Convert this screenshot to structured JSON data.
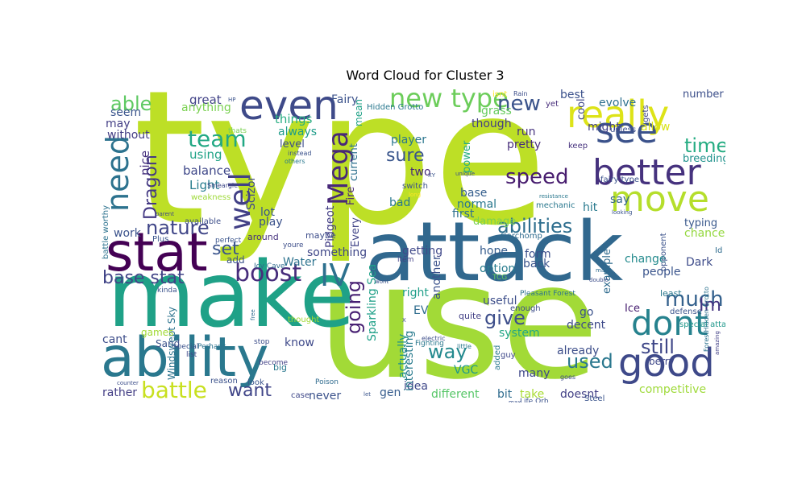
{
  "figure": {
    "title": "Word Cloud for Cluster 3"
  },
  "cloud": {
    "words": [
      {
        "text": "type",
        "color": "#bddf26"
      },
      {
        "text": "use",
        "color": "#a2da37"
      },
      {
        "text": "make",
        "color": "#1fa187"
      },
      {
        "text": "attack",
        "color": "#31688e"
      },
      {
        "text": "ability",
        "color": "#2a788e"
      },
      {
        "text": "stat",
        "color": "#440154"
      },
      {
        "text": "even",
        "color": "#3e4a89"
      },
      {
        "text": "really",
        "color": "#dde318"
      },
      {
        "text": "better",
        "color": "#46327e"
      },
      {
        "text": "see",
        "color": "#3b528b"
      },
      {
        "text": "move",
        "color": "#b5de2b"
      },
      {
        "text": "good",
        "color": "#3e4989"
      },
      {
        "text": "dont",
        "color": "#26828e"
      },
      {
        "text": "need",
        "color": "#2c728e"
      },
      {
        "text": "well",
        "color": "#424086"
      },
      {
        "text": "Mega",
        "color": "#482878"
      },
      {
        "text": "IV",
        "color": "#2d708e"
      },
      {
        "text": "boost",
        "color": "#472d7b"
      },
      {
        "text": "new type",
        "color": "#6ccd5a"
      },
      {
        "text": "team",
        "color": "#22a884"
      },
      {
        "text": "battle",
        "color": "#c8e020"
      },
      {
        "text": "abilities",
        "color": "#2e6e8e"
      },
      {
        "text": "speed",
        "color": "#481d6f"
      },
      {
        "text": "base stat",
        "color": "#414487"
      },
      {
        "text": "nature",
        "color": "#404688"
      },
      {
        "text": "set",
        "color": "#3a548c"
      },
      {
        "text": "way",
        "color": "#23898e"
      },
      {
        "text": "going",
        "color": "#482173"
      },
      {
        "text": "much",
        "color": "#34618d"
      },
      {
        "text": "still",
        "color": "#3f4788"
      },
      {
        "text": "used",
        "color": "#2a778e"
      },
      {
        "text": "Im",
        "color": "#453581"
      },
      {
        "text": "give",
        "color": "#3d4e8a"
      },
      {
        "text": "able",
        "color": "#5ec962"
      },
      {
        "text": "new",
        "color": "#3a538b"
      },
      {
        "text": "time",
        "color": "#25ac82"
      },
      {
        "text": "Dragon",
        "color": "#443983"
      },
      {
        "text": "want",
        "color": "#404588"
      },
      {
        "text": "sure",
        "color": "#39558c"
      },
      {
        "text": "Light",
        "color": "#287d8e"
      },
      {
        "text": "balance",
        "color": "#3f4889"
      },
      {
        "text": "things",
        "color": "#27ad81"
      },
      {
        "text": "using",
        "color": "#20a386"
      },
      {
        "text": "great",
        "color": "#414287"
      },
      {
        "text": "nice",
        "color": "#46307e"
      },
      {
        "text": "level",
        "color": "#3d4d8a"
      },
      {
        "text": "always",
        "color": "#1e9c89"
      },
      {
        "text": "player",
        "color": "#2a768e"
      },
      {
        "text": "pretty",
        "color": "#472d7b"
      },
      {
        "text": "run",
        "color": "#46337f"
      },
      {
        "text": "though",
        "color": "#433e85"
      },
      {
        "text": "might",
        "color": "#424186"
      },
      {
        "text": "evolve",
        "color": "#2d708e"
      },
      {
        "text": "best",
        "color": "#3b518b"
      },
      {
        "text": "number",
        "color": "#3c4f8a"
      },
      {
        "text": "allow",
        "color": "#dae319"
      },
      {
        "text": "breeding",
        "color": "#20928c"
      },
      {
        "text": "say",
        "color": "#33638d"
      },
      {
        "text": "hit",
        "color": "#297a8e"
      },
      {
        "text": "typing",
        "color": "#38588c"
      },
      {
        "text": "chance",
        "color": "#95d840"
      },
      {
        "text": "Dark",
        "color": "#3e4c8a"
      },
      {
        "text": "change",
        "color": "#238a8d"
      },
      {
        "text": "people",
        "color": "#3a548c"
      },
      {
        "text": "example",
        "color": "#2f6b8e"
      },
      {
        "text": "competitive",
        "color": "#9fda3a"
      },
      {
        "text": "decent",
        "color": "#3e4a89"
      },
      {
        "text": "already",
        "color": "#3d4e8a"
      },
      {
        "text": "many",
        "color": "#3f4889"
      },
      {
        "text": "take",
        "color": "#a8db34"
      },
      {
        "text": "doesnt",
        "color": "#424086"
      },
      {
        "text": "bit",
        "color": "#2f6c8e"
      },
      {
        "text": "different",
        "color": "#56c667"
      },
      {
        "text": "gen",
        "color": "#365c8d"
      },
      {
        "text": "idea",
        "color": "#3f4889"
      },
      {
        "text": "never",
        "color": "#3b528b"
      },
      {
        "text": "rather",
        "color": "#433e85"
      },
      {
        "text": "cant",
        "color": "#3d4d8a"
      },
      {
        "text": "work",
        "color": "#3b528b"
      },
      {
        "text": "may",
        "color": "#433e85"
      },
      {
        "text": "seem",
        "color": "#3a548c"
      },
      {
        "text": "without",
        "color": "#433d84"
      },
      {
        "text": "anything",
        "color": "#7ad151"
      },
      {
        "text": "know",
        "color": "#3e4989"
      },
      {
        "text": "something",
        "color": "#3f4788"
      },
      {
        "text": "Water",
        "color": "#2c728e"
      },
      {
        "text": "lot",
        "color": "#39568c"
      },
      {
        "text": "play",
        "color": "#3b528b"
      },
      {
        "text": "getting",
        "color": "#3f4889"
      },
      {
        "text": "hope",
        "color": "#365d8d"
      },
      {
        "text": "form",
        "color": "#3c508b"
      },
      {
        "text": "back",
        "color": "#3a548c"
      },
      {
        "text": "option",
        "color": "#287c8e"
      },
      {
        "text": "useful",
        "color": "#3d4e8a"
      },
      {
        "text": "right",
        "color": "#1f9e89"
      },
      {
        "text": "EV",
        "color": "#2f6c8e"
      },
      {
        "text": "actually",
        "color": "#21918c"
      },
      {
        "text": "interesting",
        "color": "#297b8e"
      },
      {
        "text": "VGC",
        "color": "#1f988b"
      },
      {
        "text": "system",
        "color": "#22a785"
      },
      {
        "text": "go",
        "color": "#3b528b"
      },
      {
        "text": "Ice",
        "color": "#482071"
      },
      {
        "text": "first",
        "color": "#2e6f8e"
      },
      {
        "text": "normal",
        "color": "#2a788e"
      },
      {
        "text": "base",
        "color": "#355e8d"
      },
      {
        "text": "damage",
        "color": "#7ad151"
      },
      {
        "text": "another",
        "color": "#3b528b"
      },
      {
        "text": "Sparkling Sea",
        "color": "#1fa088"
      },
      {
        "text": "Pidgeot",
        "color": "#433e85"
      },
      {
        "text": "Scizor",
        "color": "#3f4889"
      },
      {
        "text": "Every",
        "color": "#414487"
      },
      {
        "text": "bad",
        "color": "#2a788e"
      },
      {
        "text": "two",
        "color": "#472a7a"
      },
      {
        "text": "current",
        "color": "#2d718e"
      },
      {
        "text": "Fire",
        "color": "#482677"
      },
      {
        "text": "mean",
        "color": "#1fa187"
      },
      {
        "text": "Fairy",
        "color": "#3b528b"
      },
      {
        "text": "power",
        "color": "#27ad81"
      },
      {
        "text": "grass",
        "color": "#65cb5e"
      },
      {
        "text": "cool",
        "color": "#3f4889"
      },
      {
        "text": "Hidden Grotto",
        "color": "#2a788e"
      },
      {
        "text": "Windswept Sky",
        "color": "#2c738e"
      },
      {
        "text": "around",
        "color": "#46327e"
      },
      {
        "text": "maybe",
        "color": "#3d4d8a"
      },
      {
        "text": "add",
        "color": "#3b528b"
      },
      {
        "text": "Garchomp",
        "color": "#2f6b8e"
      },
      {
        "text": "berry",
        "color": "#3f4889"
      },
      {
        "text": "Sand",
        "color": "#3b528b"
      },
      {
        "text": "games",
        "color": "#a2da37"
      },
      {
        "text": "weakness",
        "color": "#9fda3a"
      },
      {
        "text": "available",
        "color": "#3d4e8a"
      },
      {
        "text": "Plus",
        "color": "#3a548c"
      },
      {
        "text": "battle worthy",
        "color": "#2c728e"
      },
      {
        "text": "fairy type",
        "color": "#3b528b"
      },
      {
        "text": "keep",
        "color": "#46327e"
      },
      {
        "text": "mechanic",
        "color": "#2a788e"
      },
      {
        "text": "unless",
        "color": "#3d4e8a"
      },
      {
        "text": "gets",
        "color": "#404688"
      },
      {
        "text": "yet",
        "color": "#472d7b"
      },
      {
        "text": "opponent",
        "color": "#3b528b"
      },
      {
        "text": "least",
        "color": "#2a788e"
      },
      {
        "text": "defense",
        "color": "#3a548c"
      },
      {
        "text": "special attack",
        "color": "#1f988b"
      },
      {
        "text": "Id",
        "color": "#2f6b8e"
      },
      {
        "text": "Pleasant Forest",
        "color": "#2c728e"
      },
      {
        "text": "enough",
        "color": "#3d4d8a"
      },
      {
        "text": "quite",
        "color": "#424086"
      },
      {
        "text": "guy",
        "color": "#3f4889"
      },
      {
        "text": "added",
        "color": "#2a788e"
      },
      {
        "text": "Steel",
        "color": "#3a548c"
      },
      {
        "text": "Life Orb",
        "color": "#3b528b"
      },
      {
        "text": "Fighting",
        "color": "#2a788e"
      },
      {
        "text": "electric",
        "color": "#3d4e8a"
      },
      {
        "text": "Poison",
        "color": "#2f6b8e"
      },
      {
        "text": "case",
        "color": "#3f4889"
      },
      {
        "text": "reason",
        "color": "#3b528b"
      },
      {
        "text": "look",
        "color": "#3a548c"
      },
      {
        "text": "become",
        "color": "#424086"
      },
      {
        "text": "big",
        "color": "#2a788e"
      },
      {
        "text": "stop",
        "color": "#3d4e8a"
      },
      {
        "text": "special",
        "color": "#3b528b"
      },
      {
        "text": "Perhaps",
        "color": "#2c728e"
      },
      {
        "text": "list",
        "color": "#3f4889"
      },
      {
        "text": "thought",
        "color": "#a2da37"
      },
      {
        "text": "Icy Cave",
        "color": "#2f6b8e"
      },
      {
        "text": "perfect",
        "color": "#3a548c"
      },
      {
        "text": "youre",
        "color": "#3d4e8a"
      },
      {
        "text": "thats",
        "color": "#7ad151"
      },
      {
        "text": "instead",
        "color": "#3b528b"
      },
      {
        "text": "others",
        "color": "#2a788e"
      },
      {
        "text": "Smeargle",
        "color": "#3f4889"
      },
      {
        "text": "switch",
        "color": "#3b528b"
      },
      {
        "text": "item",
        "color": "#424086"
      },
      {
        "text": "TCG",
        "color": "#65cb5e"
      },
      {
        "text": "Rain",
        "color": "#3d4e8a"
      },
      {
        "text": "isnt",
        "color": "#fde725"
      },
      {
        "text": "unique",
        "color": "#3b528b"
      },
      {
        "text": "resistance",
        "color": "#2a788e"
      },
      {
        "text": "looking",
        "color": "#3a548c"
      },
      {
        "text": "made",
        "color": "#2f6b8e"
      },
      {
        "text": "double",
        "color": "#3d4e8a"
      },
      {
        "text": "wont",
        "color": "#3b528b"
      },
      {
        "text": "amazing",
        "color": "#424086"
      },
      {
        "text": "ForestHidden Grotto",
        "color": "#2c728e"
      },
      {
        "text": "goes",
        "color": "#3f4889"
      },
      {
        "text": "max",
        "color": "#3b528b"
      },
      {
        "text": "little",
        "color": "#2a788e"
      },
      {
        "text": "let",
        "color": "#3a548c"
      },
      {
        "text": "counter",
        "color": "#3d4e8a"
      },
      {
        "text": "kinda",
        "color": "#3b528b"
      },
      {
        "text": "free",
        "color": "#2f6b8e"
      },
      {
        "text": "parent",
        "color": "#3f4889"
      },
      {
        "text": "HP",
        "color": "#3b528b"
      },
      {
        "text": "XY",
        "color": "#3a548c"
      },
      {
        "text": "X",
        "color": "#3d4e8a"
      },
      {
        "text": "long",
        "color": "#fde725"
      }
    ]
  }
}
